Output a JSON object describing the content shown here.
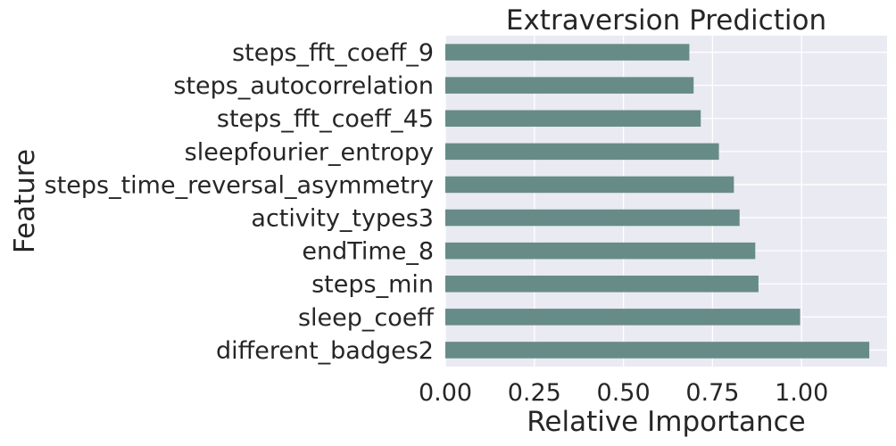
{
  "chart_data": {
    "type": "bar",
    "orientation": "horizontal",
    "title": "Extraversion Prediction",
    "xlabel": "Relative Importance",
    "ylabel": "Feature",
    "categories": [
      "steps_fft_coeff_9",
      "steps_autocorrelation",
      "steps_fft_coeff_45",
      "sleepfourier_entropy",
      "steps_time_reversal_asymmetry",
      "activity_types3",
      "endTime_8",
      "steps_min",
      "sleep_coeff",
      "different_badges2"
    ],
    "values": [
      0.685,
      0.697,
      0.717,
      0.768,
      0.81,
      0.826,
      0.87,
      0.879,
      0.996,
      1.19
    ],
    "xticks": [
      "0.00",
      "0.25",
      "0.50",
      "0.75",
      "1.00"
    ],
    "xlim": [
      0,
      1.24
    ],
    "grid": true,
    "colors": {
      "bar": "#678c88",
      "background": "#eaeaf2",
      "grid": "#ffffff",
      "text": "#262626"
    }
  }
}
